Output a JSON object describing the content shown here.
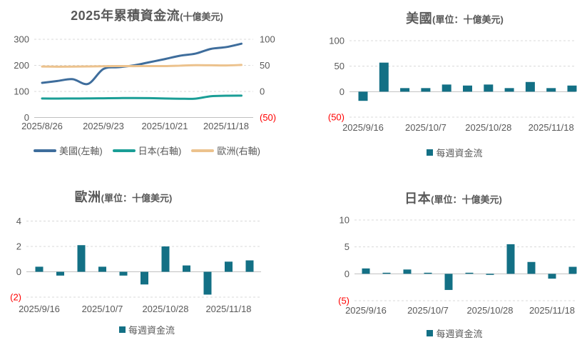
{
  "colors": {
    "background": "#ffffff",
    "bar": "#137085",
    "title_text": "#595959",
    "axis_text": "#595959",
    "negative_tick": "#ff0000",
    "gridline": "#d9d9d9",
    "baseline": "#c0c0c0"
  },
  "chart_data": [
    {
      "id": "cumulative-flows",
      "type": "line",
      "title": "2025年累積資金流",
      "subtitle": "(十億美元)",
      "legend_position": "bottom",
      "grid": "horizontal-dashed",
      "x": [
        "2025/8/26",
        "2025/9/2",
        "2025/9/9",
        "2025/9/16",
        "2025/9/23",
        "2025/9/30",
        "2025/10/7",
        "2025/10/14",
        "2025/10/21",
        "2025/10/28",
        "2025/11/4",
        "2025/11/11",
        "2025/11/18",
        "2025/11/25"
      ],
      "x_labels": [
        {
          "label": "2025/8/26",
          "index": 0
        },
        {
          "label": "2025/9/23",
          "index": 4
        },
        {
          "label": "2025/10/21",
          "index": 8
        },
        {
          "label": "2025/11/18",
          "index": 12
        }
      ],
      "left_axis": {
        "range": [
          0,
          300
        ],
        "ticks": [
          {
            "label": "300",
            "value": 300
          },
          {
            "label": "200",
            "value": 200
          },
          {
            "label": "100",
            "value": 100
          },
          {
            "label": "0",
            "value": 0
          }
        ]
      },
      "right_axis": {
        "range": [
          -50,
          100
        ],
        "ticks": [
          {
            "label": "100",
            "value": 100
          },
          {
            "label": "50",
            "value": 50
          },
          {
            "label": "0",
            "value": 0
          },
          {
            "label": "(50)",
            "value": -50
          }
        ]
      },
      "series": [
        {
          "name": "美國(左軸)",
          "axis": "left",
          "color": "#3e6d9c",
          "values": [
            133,
            140,
            147,
            129,
            186,
            193,
            200,
            212,
            224,
            237,
            245,
            263,
            270,
            283
          ]
        },
        {
          "name": "日本(右軸)",
          "axis": "right",
          "color": "#1a9e96",
          "values": [
            -13.5,
            -13.7,
            -13.5,
            -13.4,
            -13.1,
            -12.8,
            -12.6,
            -12.9,
            -13.6,
            -14.0,
            -13.8,
            -9.2,
            -8.2,
            -8.0
          ]
        },
        {
          "name": "歐洲(右軸)",
          "axis": "right",
          "color": "#ecc28d",
          "values": [
            47.8,
            47.5,
            47.6,
            47.9,
            48.3,
            48.6,
            48.5,
            48.7,
            48.6,
            49.4,
            50.3,
            50.1,
            49.9,
            50.8
          ]
        }
      ]
    },
    {
      "id": "us-weekly-flows",
      "type": "bar",
      "title": "美國",
      "subtitle": "(單位：十億美元)",
      "legend": "每週資金流",
      "bar_color": "#137085",
      "x": [
        "2025/9/16",
        "2025/9/23",
        "2025/9/30",
        "2025/10/7",
        "2025/10/14",
        "2025/10/21",
        "2025/10/28",
        "2025/11/4",
        "2025/11/11",
        "2025/11/18",
        "2025/11/25"
      ],
      "x_labels": [
        {
          "label": "2025/9/16",
          "index": 0
        },
        {
          "label": "2025/10/7",
          "index": 3
        },
        {
          "label": "2025/10/28",
          "index": 6
        },
        {
          "label": "2025/11/18",
          "index": 9
        }
      ],
      "y_axis": {
        "range": [
          -50,
          100
        ],
        "ticks": [
          {
            "label": "100",
            "value": 100
          },
          {
            "label": "50",
            "value": 50
          },
          {
            "label": "0",
            "value": 0
          },
          {
            "label": "(50)",
            "value": -50
          }
        ]
      },
      "values": [
        -18,
        57,
        7,
        7,
        14,
        12,
        14,
        7,
        19,
        7,
        12
      ]
    },
    {
      "id": "europe-weekly-flows",
      "type": "bar",
      "title": "歐洲",
      "subtitle": "(單位：十億美元)",
      "legend": "每週資金流",
      "bar_color": "#137085",
      "x": [
        "2025/9/16",
        "2025/9/23",
        "2025/9/30",
        "2025/10/7",
        "2025/10/14",
        "2025/10/21",
        "2025/10/28",
        "2025/11/4",
        "2025/11/11",
        "2025/11/18",
        "2025/11/25"
      ],
      "x_labels": [
        {
          "label": "2025/9/16",
          "index": 0
        },
        {
          "label": "2025/10/7",
          "index": 3
        },
        {
          "label": "2025/10/28",
          "index": 6
        },
        {
          "label": "2025/11/18",
          "index": 9
        }
      ],
      "y_axis": {
        "range": [
          -2,
          4
        ],
        "ticks": [
          {
            "label": "4",
            "value": 4
          },
          {
            "label": "2",
            "value": 2
          },
          {
            "label": "0",
            "value": 0
          },
          {
            "label": "(2)",
            "value": -2
          }
        ]
      },
      "values": [
        0.4,
        -0.3,
        2.1,
        0.4,
        -0.3,
        -1.0,
        2.0,
        0.5,
        -1.8,
        0.8,
        0.9
      ]
    },
    {
      "id": "japan-weekly-flows",
      "type": "bar",
      "title": "日本",
      "subtitle": "(單位：十億美元)",
      "legend": "每週資金流",
      "bar_color": "#137085",
      "x": [
        "2025/9/16",
        "2025/9/23",
        "2025/9/30",
        "2025/10/7",
        "2025/10/14",
        "2025/10/21",
        "2025/10/28",
        "2025/11/4",
        "2025/11/11",
        "2025/11/18",
        "2025/11/25"
      ],
      "x_labels": [
        {
          "label": "2025/9/16",
          "index": 0
        },
        {
          "label": "2025/10/7",
          "index": 3
        },
        {
          "label": "2025/10/28",
          "index": 6
        },
        {
          "label": "2025/11/18",
          "index": 9
        }
      ],
      "y_axis": {
        "range": [
          -5,
          10
        ],
        "ticks": [
          {
            "label": "10",
            "value": 10
          },
          {
            "label": "5",
            "value": 5
          },
          {
            "label": "0",
            "value": 0
          },
          {
            "label": "(5)",
            "value": -5
          }
        ]
      },
      "values": [
        1.0,
        0.2,
        0.8,
        0.2,
        -3.0,
        0.2,
        -0.2,
        5.5,
        2.2,
        -0.9,
        1.3
      ]
    }
  ]
}
